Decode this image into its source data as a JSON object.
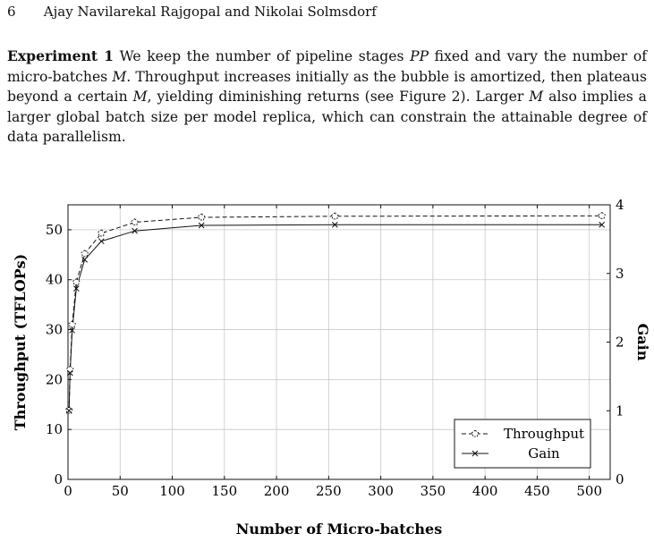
{
  "page": {
    "number": "6",
    "authors": "Ajay Navilarekal Rajgopal and Nikolai Solmsdorf"
  },
  "paragraph": {
    "heading": "Experiment 1",
    "text": "We keep the number of pipeline stages PP fixed and vary the number of micro-batches M. Throughput increases initially as the bubble is amortized, then plateaus beyond a certain M, yielding diminishing returns (see Figure 2). Larger M also implies a larger global batch size per model replica, which can constrain the attainable degree of data parallelism."
  },
  "chart_data": {
    "type": "line",
    "xlabel": "Number of Micro-batches",
    "ylabel": "Throughput (TFLOPs)",
    "y2label": "Gain",
    "xlim": [
      0,
      520
    ],
    "ylim": [
      0,
      55
    ],
    "y2lim": [
      0,
      4
    ],
    "xticks": [
      0,
      50,
      100,
      150,
      200,
      250,
      300,
      350,
      400,
      450,
      500
    ],
    "yticks": [
      0,
      10,
      20,
      30,
      40,
      50
    ],
    "y2ticks": [
      0,
      1,
      2,
      3,
      4
    ],
    "grid": true,
    "legend_position": "bottom-right",
    "x": [
      1,
      2,
      4,
      8,
      16,
      32,
      64,
      128,
      256,
      512
    ],
    "series": [
      {
        "name": "Throughput",
        "axis": "left",
        "style": "dashed",
        "marker": "pentagon",
        "values": [
          13.8,
          22.0,
          31.0,
          39.5,
          45.2,
          49.3,
          51.5,
          52.5,
          52.7,
          52.8
        ]
      },
      {
        "name": "Gain",
        "axis": "right",
        "style": "solid",
        "marker": "x",
        "values": [
          1.0,
          1.55,
          2.17,
          2.78,
          3.2,
          3.47,
          3.62,
          3.7,
          3.71,
          3.71
        ]
      }
    ]
  }
}
